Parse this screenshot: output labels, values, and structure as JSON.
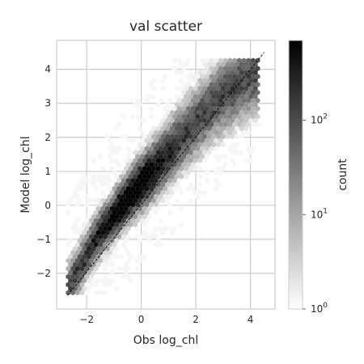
{
  "chart_data": {
    "type": "heatmap",
    "subtype": "hexbin",
    "title": "val scatter",
    "xlabel": "Obs log_chl",
    "ylabel": "Model log_chl",
    "xlim": [
      -3.1,
      4.9
    ],
    "ylim": [
      -3.05,
      4.85
    ],
    "xticks": [
      -2,
      0,
      2,
      4
    ],
    "xtick_labels": [
      "−2",
      "0",
      "2",
      "4"
    ],
    "yticks": [
      -2,
      -1,
      0,
      1,
      2,
      3,
      4
    ],
    "ytick_labels": [
      "−2",
      "−1",
      "0",
      "1",
      "2",
      "3",
      "4"
    ],
    "grid": true,
    "reference_line": {
      "style": "dashed",
      "color": "#000000",
      "x": [
        -2.7,
        4.5
      ],
      "y": [
        -2.65,
        4.5
      ]
    },
    "density": {
      "ridge_points": [
        {
          "x": -2.6,
          "y": -2.3
        },
        {
          "x": -1.6,
          "y": -0.95
        },
        {
          "x": -0.4,
          "y": 0.3
        },
        {
          "x": 0.7,
          "y": 1.3
        },
        {
          "x": 1.8,
          "y": 2.3
        },
        {
          "x": 2.8,
          "y": 3.1
        },
        {
          "x": 3.5,
          "y": 3.55
        }
      ],
      "peak": {
        "x": -0.4,
        "y": 0.3
      },
      "count_range": [
        1,
        700
      ]
    },
    "colorbar": {
      "label": "count",
      "scale": "log",
      "range": [
        1,
        700
      ],
      "colormap": [
        "#ffffff",
        "#000000"
      ],
      "ticks": [
        {
          "value": 1,
          "base": "10",
          "exp": "0"
        },
        {
          "value": 10,
          "base": "10",
          "exp": "1"
        },
        {
          "value": 100,
          "base": "10",
          "exp": "2"
        }
      ]
    }
  }
}
